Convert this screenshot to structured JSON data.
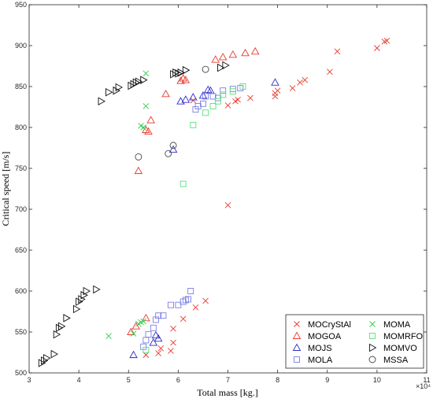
{
  "chart_data": {
    "type": "scatter",
    "xlabel": "Total mass [kg.]",
    "ylabel": "Critical speed [m/s]",
    "x_multiplier": "×10⁴",
    "xlim": [
      3,
      11
    ],
    "ylim": [
      500,
      950
    ],
    "x_ticks": [
      "3",
      "4",
      "5",
      "6",
      "7",
      "8",
      "9",
      "10",
      "11"
    ],
    "y_ticks": [
      "500",
      "550",
      "600",
      "650",
      "700",
      "750",
      "800",
      "850",
      "900",
      "950"
    ],
    "grid": false,
    "legend_position": "bottom-right",
    "series": [
      {
        "name": "MOCryStAl",
        "marker": "x",
        "color": "#e8392e",
        "points": [
          [
            5.35,
            522
          ],
          [
            5.6,
            524
          ],
          [
            5.65,
            530
          ],
          [
            5.85,
            527
          ],
          [
            5.9,
            537
          ],
          [
            5.9,
            554
          ],
          [
            6.1,
            566
          ],
          [
            6.35,
            580
          ],
          [
            6.55,
            588
          ],
          [
            6.3,
            833
          ],
          [
            7.0,
            705
          ],
          [
            7.0,
            827
          ],
          [
            7.15,
            832
          ],
          [
            7.2,
            834
          ],
          [
            7.45,
            836
          ],
          [
            7.95,
            838
          ],
          [
            7.95,
            842
          ],
          [
            8.0,
            845
          ],
          [
            8.3,
            848
          ],
          [
            8.45,
            855
          ],
          [
            8.55,
            858
          ],
          [
            9.05,
            868
          ],
          [
            9.2,
            893
          ],
          [
            10.0,
            897
          ],
          [
            10.15,
            905
          ],
          [
            10.2,
            906
          ]
        ]
      },
      {
        "name": "MOGOA",
        "marker": "triangle-up",
        "color": "#e8392e",
        "points": [
          [
            5.05,
            550
          ],
          [
            5.15,
            557
          ],
          [
            5.35,
            567
          ],
          [
            5.2,
            747
          ],
          [
            5.35,
            797
          ],
          [
            5.4,
            795
          ],
          [
            5.45,
            809
          ],
          [
            5.75,
            841
          ],
          [
            6.05,
            857
          ],
          [
            6.1,
            860
          ],
          [
            6.15,
            858
          ],
          [
            6.75,
            883
          ],
          [
            6.9,
            886
          ],
          [
            7.1,
            889
          ],
          [
            7.35,
            891
          ],
          [
            7.55,
            893
          ]
        ]
      },
      {
        "name": "MOJS",
        "marker": "triangle-up",
        "color": "#2d2ec4",
        "points": [
          [
            5.1,
            522
          ],
          [
            5.5,
            537
          ],
          [
            5.55,
            546
          ],
          [
            5.6,
            542
          ],
          [
            5.9,
            773
          ],
          [
            6.05,
            832
          ],
          [
            6.15,
            834
          ],
          [
            6.3,
            837
          ],
          [
            6.5,
            839
          ],
          [
            6.6,
            846
          ],
          [
            6.65,
            845
          ],
          [
            7.95,
            855
          ]
        ]
      },
      {
        "name": "MOLA",
        "marker": "square",
        "color": "#7b7ee8",
        "points": [
          [
            5.3,
            532
          ],
          [
            5.35,
            540
          ],
          [
            5.4,
            547
          ],
          [
            5.5,
            555
          ],
          [
            5.55,
            565
          ],
          [
            5.6,
            570
          ],
          [
            5.7,
            570
          ],
          [
            5.85,
            583
          ],
          [
            6.0,
            583
          ],
          [
            6.1,
            587
          ],
          [
            6.15,
            589
          ],
          [
            6.2,
            590
          ],
          [
            6.25,
            600
          ],
          [
            6.35,
            822
          ],
          [
            6.4,
            826
          ],
          [
            6.5,
            829
          ],
          [
            6.55,
            838
          ],
          [
            6.7,
            838
          ],
          [
            6.8,
            836
          ],
          [
            6.9,
            845
          ],
          [
            7.1,
            847
          ],
          [
            7.25,
            848
          ]
        ]
      },
      {
        "name": "MOMA",
        "marker": "x",
        "color": "#2ecc4e",
        "points": [
          [
            4.6,
            545
          ],
          [
            5.1,
            548
          ],
          [
            5.2,
            560
          ],
          [
            5.25,
            562
          ],
          [
            5.3,
            563
          ],
          [
            5.25,
            802
          ],
          [
            5.3,
            800
          ],
          [
            5.35,
            826
          ],
          [
            5.35,
            866
          ]
        ]
      },
      {
        "name": "MOMRFO",
        "marker": "square",
        "color": "#5ae07a",
        "points": [
          [
            5.35,
            528
          ],
          [
            6.1,
            731
          ],
          [
            6.3,
            803
          ],
          [
            6.55,
            818
          ],
          [
            6.7,
            826
          ],
          [
            6.8,
            832
          ],
          [
            6.9,
            840
          ],
          [
            7.1,
            844
          ],
          [
            7.3,
            850
          ]
        ]
      },
      {
        "name": "MOMVO",
        "marker": "triangle-right",
        "color": "#111111",
        "points": [
          [
            3.25,
            512
          ],
          [
            3.3,
            515
          ],
          [
            3.35,
            518
          ],
          [
            3.5,
            523
          ],
          [
            3.55,
            547
          ],
          [
            3.6,
            555
          ],
          [
            3.65,
            557
          ],
          [
            3.75,
            567
          ],
          [
            3.95,
            578
          ],
          [
            4.0,
            587
          ],
          [
            4.05,
            590
          ],
          [
            4.1,
            595
          ],
          [
            4.15,
            600
          ],
          [
            4.35,
            602
          ],
          [
            4.45,
            832
          ],
          [
            4.6,
            843
          ],
          [
            4.75,
            845
          ],
          [
            4.8,
            849
          ],
          [
            5.05,
            851
          ],
          [
            5.1,
            853
          ],
          [
            5.15,
            855
          ],
          [
            5.2,
            856
          ],
          [
            5.3,
            858
          ],
          [
            5.9,
            865
          ],
          [
            5.95,
            867
          ],
          [
            6.0,
            866
          ],
          [
            6.05,
            867
          ],
          [
            6.15,
            870
          ],
          [
            6.85,
            873
          ],
          [
            6.95,
            876
          ]
        ]
      },
      {
        "name": "MSSA",
        "marker": "circle",
        "color": "#444444",
        "points": [
          [
            5.2,
            764
          ],
          [
            5.8,
            768
          ],
          [
            5.9,
            778
          ],
          [
            6.55,
            871
          ]
        ]
      }
    ]
  }
}
